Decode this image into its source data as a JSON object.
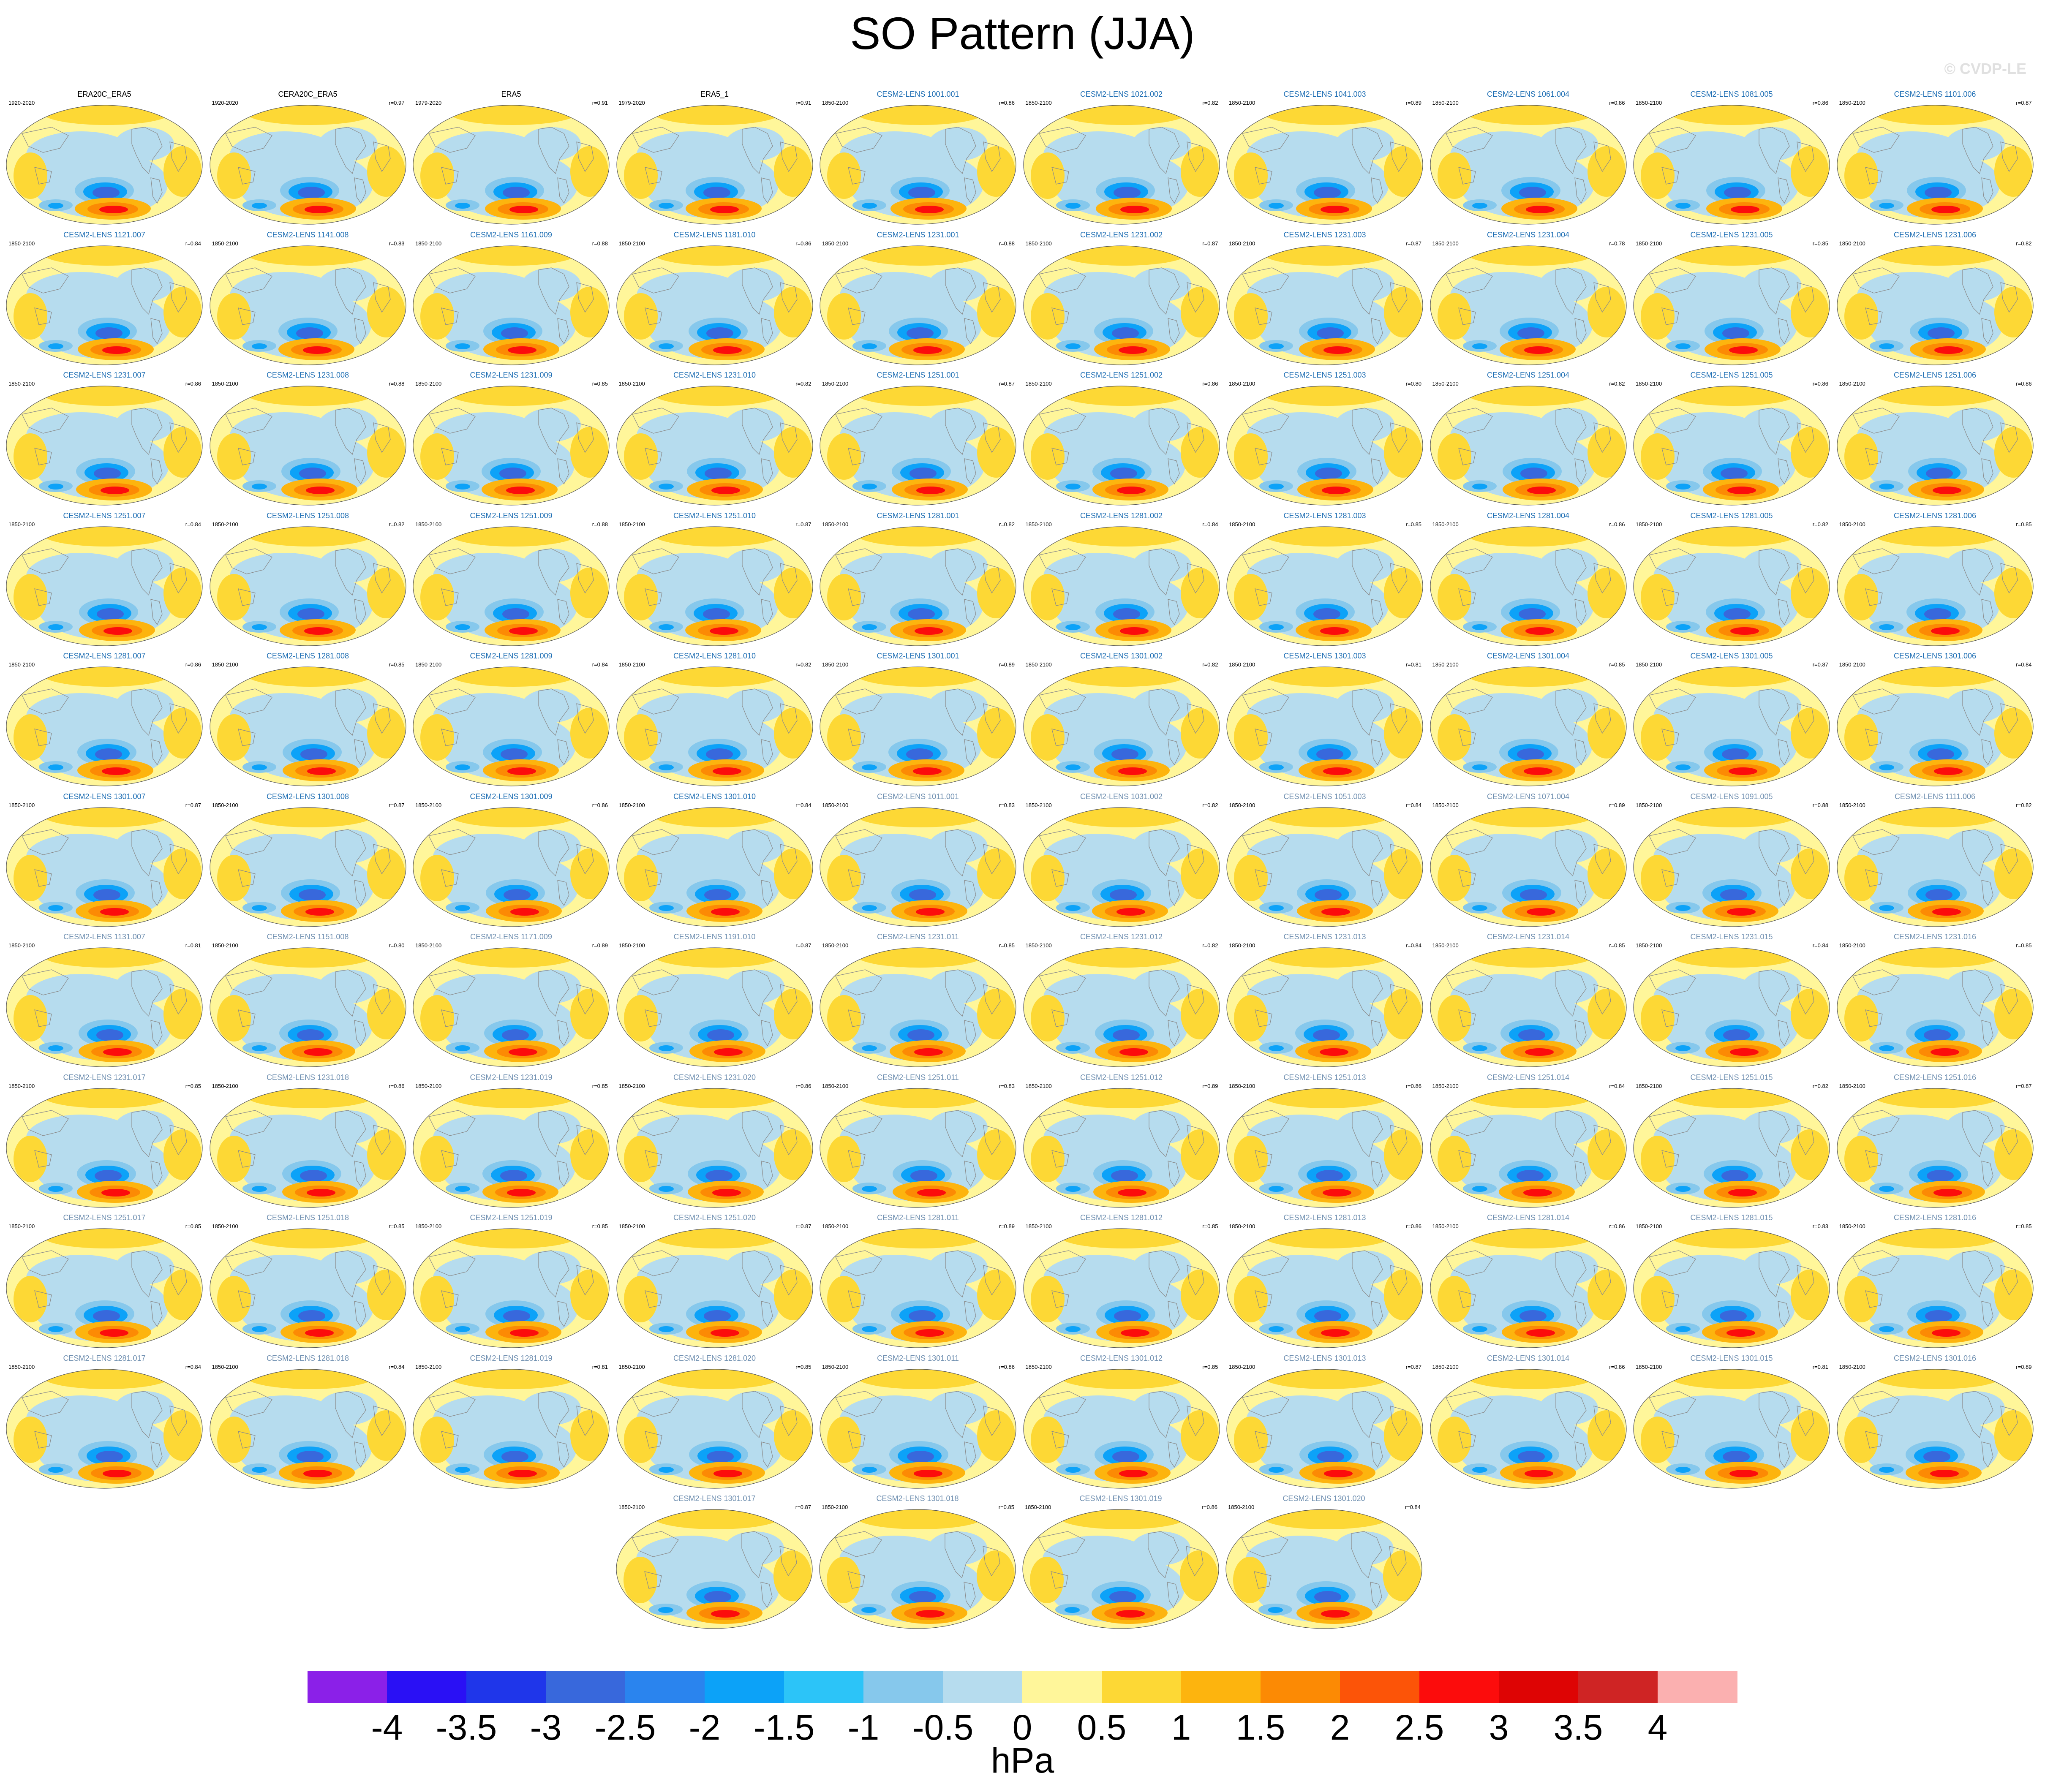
{
  "title": "SO Pattern (JJA)",
  "watermark": "© CVDP-LE",
  "chart_data": {
    "type": "map-panels",
    "title": "SO Pattern (JJA)",
    "variable_units": "hPa",
    "colorbar": {
      "levels": [
        "-4",
        "-3.5",
        "-3",
        "-2.5",
        "-2",
        "-1.5",
        "-1",
        "-0.5",
        "0",
        "0.5",
        "1",
        "1.5",
        "2",
        "2.5",
        "3",
        "3.5",
        "4"
      ],
      "colors": [
        "#8b20e8",
        "#2a10f5",
        "#1f36ea",
        "#3868dc",
        "#2a84ee",
        "#0ca2f8",
        "#2cc4f8",
        "#86c8ec",
        "#b6dcee",
        "#fff69a",
        "#fdd835",
        "#fdb40e",
        "#fc8a04",
        "#fc5408",
        "#fc0c0c",
        "#de0404",
        "#cf2424",
        "#fbb0b0"
      ],
      "unit": "hPa"
    },
    "panels": [
      {
        "label": "ERA20C_ERA5",
        "range": "1920-2020",
        "corr": "",
        "color": "obs"
      },
      {
        "label": "CERA20C_ERA5",
        "range": "1920-2020",
        "corr": "r=0.97",
        "color": "obs"
      },
      {
        "label": "ERA5",
        "range": "1979-2020",
        "corr": "r=0.91",
        "color": "obs"
      },
      {
        "label": "ERA5_1",
        "range": "1979-2020",
        "corr": "r=0.91",
        "color": "obs"
      },
      {
        "label": "CESM2-LENS 1001.001",
        "range": "1850-2100",
        "corr": "r=0.86",
        "color": "c1"
      },
      {
        "label": "CESM2-LENS 1021.002",
        "range": "1850-2100",
        "corr": "r=0.82",
        "color": "c1"
      },
      {
        "label": "CESM2-LENS 1041.003",
        "range": "1850-2100",
        "corr": "r=0.89",
        "color": "c1"
      },
      {
        "label": "CESM2-LENS 1061.004",
        "range": "1850-2100",
        "corr": "r=0.86",
        "color": "c1"
      },
      {
        "label": "CESM2-LENS 1081.005",
        "range": "1850-2100",
        "corr": "r=0.86",
        "color": "c1"
      },
      {
        "label": "CESM2-LENS 1101.006",
        "range": "1850-2100",
        "corr": "r=0.87",
        "color": "c1"
      },
      {
        "label": "CESM2-LENS 1121.007",
        "range": "1850-2100",
        "corr": "r=0.84",
        "color": "c1"
      },
      {
        "label": "CESM2-LENS 1141.008",
        "range": "1850-2100",
        "corr": "r=0.83",
        "color": "c1"
      },
      {
        "label": "CESM2-LENS 1161.009",
        "range": "1850-2100",
        "corr": "r=0.88",
        "color": "c1"
      },
      {
        "label": "CESM2-LENS 1181.010",
        "range": "1850-2100",
        "corr": "r=0.86",
        "color": "c1"
      },
      {
        "label": "CESM2-LENS 1231.001",
        "range": "1850-2100",
        "corr": "r=0.88",
        "color": "c1"
      },
      {
        "label": "CESM2-LENS 1231.002",
        "range": "1850-2100",
        "corr": "r=0.87",
        "color": "c1"
      },
      {
        "label": "CESM2-LENS 1231.003",
        "range": "1850-2100",
        "corr": "r=0.87",
        "color": "c1"
      },
      {
        "label": "CESM2-LENS 1231.004",
        "range": "1850-2100",
        "corr": "r=0.78",
        "color": "c1"
      },
      {
        "label": "CESM2-LENS 1231.005",
        "range": "1850-2100",
        "corr": "r=0.85",
        "color": "c1"
      },
      {
        "label": "CESM2-LENS 1231.006",
        "range": "1850-2100",
        "corr": "r=0.82",
        "color": "c1"
      },
      {
        "label": "CESM2-LENS 1231.007",
        "range": "1850-2100",
        "corr": "r=0.86",
        "color": "c1"
      },
      {
        "label": "CESM2-LENS 1231.008",
        "range": "1850-2100",
        "corr": "r=0.88",
        "color": "c1"
      },
      {
        "label": "CESM2-LENS 1231.009",
        "range": "1850-2100",
        "corr": "r=0.85",
        "color": "c1"
      },
      {
        "label": "CESM2-LENS 1231.010",
        "range": "1850-2100",
        "corr": "r=0.82",
        "color": "c1"
      },
      {
        "label": "CESM2-LENS 1251.001",
        "range": "1850-2100",
        "corr": "r=0.87",
        "color": "c1"
      },
      {
        "label": "CESM2-LENS 1251.002",
        "range": "1850-2100",
        "corr": "r=0.86",
        "color": "c1"
      },
      {
        "label": "CESM2-LENS 1251.003",
        "range": "1850-2100",
        "corr": "r=0.80",
        "color": "c1"
      },
      {
        "label": "CESM2-LENS 1251.004",
        "range": "1850-2100",
        "corr": "r=0.82",
        "color": "c1"
      },
      {
        "label": "CESM2-LENS 1251.005",
        "range": "1850-2100",
        "corr": "r=0.86",
        "color": "c1"
      },
      {
        "label": "CESM2-LENS 1251.006",
        "range": "1850-2100",
        "corr": "r=0.86",
        "color": "c1"
      },
      {
        "label": "CESM2-LENS 1251.007",
        "range": "1850-2100",
        "corr": "r=0.84",
        "color": "c1"
      },
      {
        "label": "CESM2-LENS 1251.008",
        "range": "1850-2100",
        "corr": "r=0.82",
        "color": "c1"
      },
      {
        "label": "CESM2-LENS 1251.009",
        "range": "1850-2100",
        "corr": "r=0.88",
        "color": "c1"
      },
      {
        "label": "CESM2-LENS 1251.010",
        "range": "1850-2100",
        "corr": "r=0.87",
        "color": "c1"
      },
      {
        "label": "CESM2-LENS 1281.001",
        "range": "1850-2100",
        "corr": "r=0.82",
        "color": "c1"
      },
      {
        "label": "CESM2-LENS 1281.002",
        "range": "1850-2100",
        "corr": "r=0.84",
        "color": "c1"
      },
      {
        "label": "CESM2-LENS 1281.003",
        "range": "1850-2100",
        "corr": "r=0.85",
        "color": "c1"
      },
      {
        "label": "CESM2-LENS 1281.004",
        "range": "1850-2100",
        "corr": "r=0.86",
        "color": "c1"
      },
      {
        "label": "CESM2-LENS 1281.005",
        "range": "1850-2100",
        "corr": "r=0.82",
        "color": "c1"
      },
      {
        "label": "CESM2-LENS 1281.006",
        "range": "1850-2100",
        "corr": "r=0.85",
        "color": "c1"
      },
      {
        "label": "CESM2-LENS 1281.007",
        "range": "1850-2100",
        "corr": "r=0.86",
        "color": "c1"
      },
      {
        "label": "CESM2-LENS 1281.008",
        "range": "1850-2100",
        "corr": "r=0.85",
        "color": "c1"
      },
      {
        "label": "CESM2-LENS 1281.009",
        "range": "1850-2100",
        "corr": "r=0.84",
        "color": "c1"
      },
      {
        "label": "CESM2-LENS 1281.010",
        "range": "1850-2100",
        "corr": "r=0.82",
        "color": "c1"
      },
      {
        "label": "CESM2-LENS 1301.001",
        "range": "1850-2100",
        "corr": "r=0.89",
        "color": "c1"
      },
      {
        "label": "CESM2-LENS 1301.002",
        "range": "1850-2100",
        "corr": "r=0.82",
        "color": "c1"
      },
      {
        "label": "CESM2-LENS 1301.003",
        "range": "1850-2100",
        "corr": "r=0.81",
        "color": "c1"
      },
      {
        "label": "CESM2-LENS 1301.004",
        "range": "1850-2100",
        "corr": "r=0.85",
        "color": "c1"
      },
      {
        "label": "CESM2-LENS 1301.005",
        "range": "1850-2100",
        "corr": "r=0.87",
        "color": "c1"
      },
      {
        "label": "CESM2-LENS 1301.006",
        "range": "1850-2100",
        "corr": "r=0.84",
        "color": "c1"
      },
      {
        "label": "CESM2-LENS 1301.007",
        "range": "1850-2100",
        "corr": "r=0.87",
        "color": "c1"
      },
      {
        "label": "CESM2-LENS 1301.008",
        "range": "1850-2100",
        "corr": "r=0.87",
        "color": "c1"
      },
      {
        "label": "CESM2-LENS 1301.009",
        "range": "1850-2100",
        "corr": "r=0.86",
        "color": "c1"
      },
      {
        "label": "CESM2-LENS 1301.010",
        "range": "1850-2100",
        "corr": "r=0.84",
        "color": "c1"
      },
      {
        "label": "CESM2-LENS 1011.001",
        "range": "1850-2100",
        "corr": "r=0.83",
        "color": "c2"
      },
      {
        "label": "CESM2-LENS 1031.002",
        "range": "1850-2100",
        "corr": "r=0.82",
        "color": "c2"
      },
      {
        "label": "CESM2-LENS 1051.003",
        "range": "1850-2100",
        "corr": "r=0.84",
        "color": "c2"
      },
      {
        "label": "CESM2-LENS 1071.004",
        "range": "1850-2100",
        "corr": "r=0.89",
        "color": "c2"
      },
      {
        "label": "CESM2-LENS 1091.005",
        "range": "1850-2100",
        "corr": "r=0.88",
        "color": "c2"
      },
      {
        "label": "CESM2-LENS 1111.006",
        "range": "1850-2100",
        "corr": "r=0.82",
        "color": "c2"
      },
      {
        "label": "CESM2-LENS 1131.007",
        "range": "1850-2100",
        "corr": "r=0.81",
        "color": "c2"
      },
      {
        "label": "CESM2-LENS 1151.008",
        "range": "1850-2100",
        "corr": "r=0.80",
        "color": "c2"
      },
      {
        "label": "CESM2-LENS 1171.009",
        "range": "1850-2100",
        "corr": "r=0.89",
        "color": "c2"
      },
      {
        "label": "CESM2-LENS 1191.010",
        "range": "1850-2100",
        "corr": "r=0.87",
        "color": "c2"
      },
      {
        "label": "CESM2-LENS 1231.011",
        "range": "1850-2100",
        "corr": "r=0.85",
        "color": "c2"
      },
      {
        "label": "CESM2-LENS 1231.012",
        "range": "1850-2100",
        "corr": "r=0.82",
        "color": "c2"
      },
      {
        "label": "CESM2-LENS 1231.013",
        "range": "1850-2100",
        "corr": "r=0.84",
        "color": "c2"
      },
      {
        "label": "CESM2-LENS 1231.014",
        "range": "1850-2100",
        "corr": "r=0.85",
        "color": "c2"
      },
      {
        "label": "CESM2-LENS 1231.015",
        "range": "1850-2100",
        "corr": "r=0.84",
        "color": "c2"
      },
      {
        "label": "CESM2-LENS 1231.016",
        "range": "1850-2100",
        "corr": "r=0.85",
        "color": "c2"
      },
      {
        "label": "CESM2-LENS 1231.017",
        "range": "1850-2100",
        "corr": "r=0.85",
        "color": "c2"
      },
      {
        "label": "CESM2-LENS 1231.018",
        "range": "1850-2100",
        "corr": "r=0.86",
        "color": "c2"
      },
      {
        "label": "CESM2-LENS 1231.019",
        "range": "1850-2100",
        "corr": "r=0.85",
        "color": "c2"
      },
      {
        "label": "CESM2-LENS 1231.020",
        "range": "1850-2100",
        "corr": "r=0.86",
        "color": "c2"
      },
      {
        "label": "CESM2-LENS 1251.011",
        "range": "1850-2100",
        "corr": "r=0.83",
        "color": "c2"
      },
      {
        "label": "CESM2-LENS 1251.012",
        "range": "1850-2100",
        "corr": "r=0.89",
        "color": "c2"
      },
      {
        "label": "CESM2-LENS 1251.013",
        "range": "1850-2100",
        "corr": "r=0.86",
        "color": "c2"
      },
      {
        "label": "CESM2-LENS 1251.014",
        "range": "1850-2100",
        "corr": "r=0.84",
        "color": "c2"
      },
      {
        "label": "CESM2-LENS 1251.015",
        "range": "1850-2100",
        "corr": "r=0.82",
        "color": "c2"
      },
      {
        "label": "CESM2-LENS 1251.016",
        "range": "1850-2100",
        "corr": "r=0.87",
        "color": "c2"
      },
      {
        "label": "CESM2-LENS 1251.017",
        "range": "1850-2100",
        "corr": "r=0.85",
        "color": "c2"
      },
      {
        "label": "CESM2-LENS 1251.018",
        "range": "1850-2100",
        "corr": "r=0.85",
        "color": "c2"
      },
      {
        "label": "CESM2-LENS 1251.019",
        "range": "1850-2100",
        "corr": "r=0.85",
        "color": "c2"
      },
      {
        "label": "CESM2-LENS 1251.020",
        "range": "1850-2100",
        "corr": "r=0.87",
        "color": "c2"
      },
      {
        "label": "CESM2-LENS 1281.011",
        "range": "1850-2100",
        "corr": "r=0.89",
        "color": "c2"
      },
      {
        "label": "CESM2-LENS 1281.012",
        "range": "1850-2100",
        "corr": "r=0.85",
        "color": "c2"
      },
      {
        "label": "CESM2-LENS 1281.013",
        "range": "1850-2100",
        "corr": "r=0.86",
        "color": "c2"
      },
      {
        "label": "CESM2-LENS 1281.014",
        "range": "1850-2100",
        "corr": "r=0.86",
        "color": "c2"
      },
      {
        "label": "CESM2-LENS 1281.015",
        "range": "1850-2100",
        "corr": "r=0.83",
        "color": "c2"
      },
      {
        "label": "CESM2-LENS 1281.016",
        "range": "1850-2100",
        "corr": "r=0.85",
        "color": "c2"
      },
      {
        "label": "CESM2-LENS 1281.017",
        "range": "1850-2100",
        "corr": "r=0.84",
        "color": "c2"
      },
      {
        "label": "CESM2-LENS 1281.018",
        "range": "1850-2100",
        "corr": "r=0.84",
        "color": "c2"
      },
      {
        "label": "CESM2-LENS 1281.019",
        "range": "1850-2100",
        "corr": "r=0.81",
        "color": "c2"
      },
      {
        "label": "CESM2-LENS 1281.020",
        "range": "1850-2100",
        "corr": "r=0.85",
        "color": "c2"
      },
      {
        "label": "CESM2-LENS 1301.011",
        "range": "1850-2100",
        "corr": "r=0.86",
        "color": "c2"
      },
      {
        "label": "CESM2-LENS 1301.012",
        "range": "1850-2100",
        "corr": "r=0.85",
        "color": "c2"
      },
      {
        "label": "CESM2-LENS 1301.013",
        "range": "1850-2100",
        "corr": "r=0.87",
        "color": "c2"
      },
      {
        "label": "CESM2-LENS 1301.014",
        "range": "1850-2100",
        "corr": "r=0.86",
        "color": "c2"
      },
      {
        "label": "CESM2-LENS 1301.015",
        "range": "1850-2100",
        "corr": "r=0.81",
        "color": "c2"
      },
      {
        "label": "CESM2-LENS 1301.016",
        "range": "1850-2100",
        "corr": "r=0.89",
        "color": "c2"
      },
      {
        "label": "CESM2-LENS 1301.017",
        "range": "1850-2100",
        "corr": "r=0.87",
        "color": "c2"
      },
      {
        "label": "CESM2-LENS 1301.018",
        "range": "1850-2100",
        "corr": "r=0.85",
        "color": "c2"
      },
      {
        "label": "CESM2-LENS 1301.019",
        "range": "1850-2100",
        "corr": "r=0.86",
        "color": "c2"
      },
      {
        "label": "CESM2-LENS 1301.020",
        "range": "1850-2100",
        "corr": "r=0.84",
        "color": "c2"
      }
    ]
  }
}
